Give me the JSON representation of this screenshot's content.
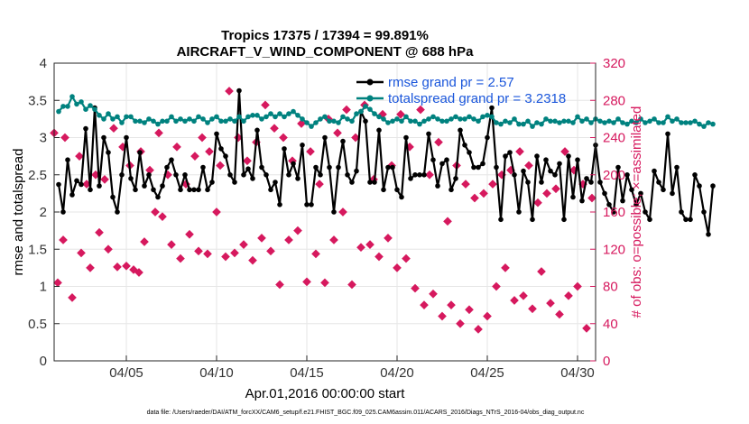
{
  "chart_data": {
    "type": "line",
    "title": "Tropics 17375 / 17394 = 99.891%",
    "subtitle": "AIRCRAFT_V_WIND_COMPONENT @ 688 hPa",
    "xlabel": "Apr.01,2016 00:00:00 start",
    "ylabel": "rmse and totalspread",
    "y2label": "# of obs: o=possible; ×=assimilated",
    "footnote": "data file: /Users/raeder/DAI/ATM_forcXX/CAM6_setup/f.e21.FHIST_BGC.f09_025.CAM6assim.011/ACARS_2016/Diags_NTrS_2016-04/obs_diag_output.nc",
    "xlim": [
      1,
      31
    ],
    "ylim": [
      0,
      4
    ],
    "y2lim": [
      0,
      320
    ],
    "grid": true,
    "legend_position": "top-right",
    "x_ticks": [
      5,
      10,
      15,
      20,
      25,
      30
    ],
    "x_tick_labels": [
      "04/05",
      "04/10",
      "04/15",
      "04/20",
      "04/25",
      "04/30"
    ],
    "y_ticks": [
      0,
      0.5,
      1,
      1.5,
      2,
      2.5,
      3,
      3.5,
      4
    ],
    "y_tick_labels": [
      "0",
      "0.5",
      "1",
      "1.5",
      "2",
      "2.5",
      "3",
      "3.5",
      "4"
    ],
    "y2_ticks": [
      0,
      40,
      80,
      120,
      160,
      200,
      240,
      280,
      320
    ],
    "y2_tick_labels": [
      "0",
      "40",
      "80",
      "120",
      "160",
      "200",
      "240",
      "280",
      "320"
    ],
    "x_start": 1.25,
    "x_step": 0.25,
    "series": [
      {
        "name": "rmse grand pr = 2.57",
        "axis": "left",
        "marker": "dot",
        "color": "#000000",
        "values": [
          2.37,
          2.0,
          2.7,
          2.23,
          2.42,
          2.37,
          3.12,
          2.3,
          3.4,
          2.35,
          3.0,
          2.8,
          2.2,
          2.0,
          2.5,
          3.0,
          2.45,
          2.3,
          2.8,
          2.35,
          2.5,
          2.3,
          2.2,
          2.35,
          2.6,
          2.7,
          2.5,
          2.3,
          2.5,
          2.3,
          2.3,
          2.3,
          2.6,
          2.3,
          2.4,
          3.05,
          2.85,
          2.75,
          2.5,
          2.4,
          3.63,
          2.5,
          2.58,
          2.45,
          3.1,
          2.6,
          2.5,
          2.3,
          2.4,
          2.1,
          2.85,
          2.5,
          2.65,
          2.45,
          2.9,
          2.1,
          2.1,
          2.6,
          2.5,
          3.0,
          2.6,
          2.0,
          2.6,
          2.95,
          2.5,
          2.4,
          2.55,
          3.35,
          3.22,
          2.4,
          2.4,
          3.1,
          2.3,
          2.6,
          2.6,
          2.3,
          2.2,
          3.0,
          2.45,
          2.5,
          2.5,
          2.5,
          3.05,
          2.7,
          2.35,
          2.65,
          2.7,
          2.3,
          2.45,
          3.1,
          2.9,
          2.8,
          2.6,
          2.6,
          2.65,
          3.0,
          3.4,
          2.6,
          1.9,
          2.75,
          2.8,
          2.5,
          2.0,
          2.55,
          2.4,
          1.9,
          2.75,
          2.4,
          2.7,
          2.55,
          2.5,
          2.65,
          1.9,
          2.75,
          2.2,
          2.7,
          2.15,
          2.45,
          2.4,
          2.9,
          2.4,
          2.25,
          2.1,
          2.0,
          2.6,
          2.15,
          2.5,
          2.3,
          2.1,
          2.25,
          2.0,
          1.9,
          2.55,
          2.4,
          2.3,
          3.05,
          2.25,
          2.6,
          2.0,
          1.9,
          1.9,
          2.5,
          2.35,
          2.0,
          1.7,
          2.35
        ]
      },
      {
        "name": "totalspread grand pr = 3.2318",
        "axis": "left",
        "marker": "dot",
        "color": "#00827f",
        "values": [
          3.35,
          3.42,
          3.42,
          3.55,
          3.45,
          3.48,
          3.38,
          3.43,
          3.38,
          3.3,
          3.25,
          3.32,
          3.25,
          3.28,
          3.2,
          3.28,
          3.28,
          3.22,
          3.22,
          3.2,
          3.25,
          3.22,
          3.18,
          3.22,
          3.22,
          3.28,
          3.22,
          3.25,
          3.22,
          3.25,
          3.22,
          3.28,
          3.25,
          3.2,
          3.25,
          3.28,
          3.22,
          3.22,
          3.25,
          3.22,
          3.28,
          3.22,
          3.28,
          3.3,
          3.3,
          3.25,
          3.28,
          3.32,
          3.28,
          3.32,
          3.28,
          3.32,
          3.35,
          3.3,
          3.25,
          3.2,
          3.15,
          3.2,
          3.25,
          3.28,
          3.22,
          3.22,
          3.2,
          3.28,
          3.25,
          3.22,
          3.32,
          3.35,
          3.42,
          3.38,
          3.32,
          3.28,
          3.25,
          3.2,
          3.22,
          3.25,
          3.22,
          3.28,
          3.22,
          3.22,
          3.18,
          3.22,
          3.25,
          3.28,
          3.25,
          3.22,
          3.22,
          3.25,
          3.28,
          3.25,
          3.25,
          3.28,
          3.25,
          3.22,
          3.28,
          3.3,
          3.28,
          3.2,
          3.18,
          3.22,
          3.2,
          3.25,
          3.18,
          3.18,
          3.22,
          3.15,
          3.2,
          3.18,
          3.25,
          3.22,
          3.22,
          3.2,
          3.22,
          3.22,
          3.2,
          3.28,
          3.22,
          3.25,
          3.2,
          3.25,
          3.22,
          3.2,
          3.22,
          3.2,
          3.25,
          3.2,
          3.18,
          3.22,
          3.2,
          3.25,
          3.2,
          3.22,
          3.25,
          3.2,
          3.2,
          3.28,
          3.22,
          3.25,
          3.2,
          3.2,
          3.2,
          3.22,
          3.18,
          3.15,
          3.2,
          3.18
        ]
      }
    ],
    "obs_series": [
      {
        "name": "possible",
        "axis": "right",
        "marker": "diamond",
        "color": "#d6195e",
        "points": [
          [
            1.2,
            84
          ],
          [
            1.5,
            130
          ],
          [
            2.0,
            68
          ],
          [
            2.5,
            116
          ],
          [
            3.0,
            100
          ],
          [
            3.5,
            138
          ],
          [
            4.0,
            120
          ],
          [
            4.5,
            101
          ],
          [
            5.0,
            102
          ],
          [
            5.4,
            98
          ],
          [
            5.7,
            95
          ],
          [
            6.0,
            128
          ],
          [
            6.6,
            160
          ],
          [
            7.0,
            155
          ],
          [
            7.5,
            125
          ],
          [
            8.0,
            110
          ],
          [
            8.5,
            136
          ],
          [
            9.0,
            118
          ],
          [
            9.5,
            115
          ],
          [
            10.0,
            160
          ],
          [
            10.5,
            112
          ],
          [
            11.0,
            116
          ],
          [
            11.5,
            125
          ],
          [
            12.0,
            108
          ],
          [
            12.5,
            132
          ],
          [
            13.0,
            118
          ],
          [
            13.5,
            82
          ],
          [
            14.0,
            130
          ],
          [
            14.5,
            140
          ],
          [
            15.0,
            85
          ],
          [
            15.5,
            115
          ],
          [
            16.0,
            84
          ],
          [
            16.5,
            130
          ],
          [
            17.0,
            160
          ],
          [
            17.5,
            82
          ],
          [
            18.0,
            122
          ],
          [
            18.5,
            125
          ],
          [
            19.0,
            112
          ],
          [
            19.5,
            132
          ],
          [
            20.0,
            100
          ],
          [
            20.5,
            110
          ],
          [
            21.0,
            78
          ],
          [
            21.5,
            60
          ],
          [
            22.0,
            72
          ],
          [
            22.5,
            48
          ],
          [
            23.0,
            60
          ],
          [
            23.5,
            40
          ],
          [
            24.0,
            55
          ],
          [
            24.5,
            34
          ],
          [
            25.0,
            48
          ],
          [
            25.5,
            80
          ],
          [
            26.0,
            100
          ],
          [
            26.5,
            65
          ],
          [
            27.0,
            70
          ],
          [
            27.5,
            56
          ],
          [
            28.0,
            96
          ],
          [
            28.5,
            62
          ],
          [
            29.0,
            50
          ],
          [
            29.5,
            70
          ],
          [
            30.0,
            80
          ],
          [
            30.5,
            35
          ]
        ]
      },
      {
        "name": "assimilated",
        "axis": "right",
        "marker": "diamond",
        "color": "#d6195e",
        "points": [
          [
            1.0,
            245
          ],
          [
            1.6,
            240
          ],
          [
            2.4,
            220
          ],
          [
            2.8,
            190
          ],
          [
            3.3,
            200
          ],
          [
            3.8,
            195
          ],
          [
            4.3,
            250
          ],
          [
            4.8,
            230
          ],
          [
            5.2,
            210
          ],
          [
            5.8,
            225
          ],
          [
            6.3,
            205
          ],
          [
            6.8,
            245
          ],
          [
            7.3,
            200
          ],
          [
            7.8,
            230
          ],
          [
            8.3,
            190
          ],
          [
            8.8,
            220
          ],
          [
            9.2,
            240
          ],
          [
            9.6,
            225
          ],
          [
            10.2,
            210
          ],
          [
            10.7,
            290
          ],
          [
            11.2,
            240
          ],
          [
            11.7,
            215
          ],
          [
            12.2,
            235
          ],
          [
            12.7,
            275
          ],
          [
            13.2,
            250
          ],
          [
            13.7,
            240
          ],
          [
            14.2,
            215
          ],
          [
            14.7,
            255
          ],
          [
            15.2,
            225
          ],
          [
            15.7,
            190
          ],
          [
            16.2,
            260
          ],
          [
            16.7,
            245
          ],
          [
            17.2,
            270
          ],
          [
            17.7,
            240
          ],
          [
            18.2,
            275
          ],
          [
            18.7,
            195
          ],
          [
            19.2,
            265
          ],
          [
            19.7,
            210
          ],
          [
            20.2,
            265
          ],
          [
            20.7,
            230
          ],
          [
            21.3,
            270
          ],
          [
            21.8,
            200
          ],
          [
            22.3,
            235
          ],
          [
            22.8,
            150
          ],
          [
            23.3,
            210
          ],
          [
            23.8,
            190
          ],
          [
            24.3,
            175
          ],
          [
            24.8,
            180
          ],
          [
            25.3,
            190
          ],
          [
            25.8,
            200
          ],
          [
            26.3,
            205
          ],
          [
            26.8,
            225
          ],
          [
            27.3,
            210
          ],
          [
            27.8,
            170
          ],
          [
            28.3,
            180
          ],
          [
            28.8,
            185
          ],
          [
            29.3,
            225
          ],
          [
            29.8,
            205
          ],
          [
            30.3,
            190
          ],
          [
            30.8,
            175
          ]
        ]
      }
    ]
  }
}
